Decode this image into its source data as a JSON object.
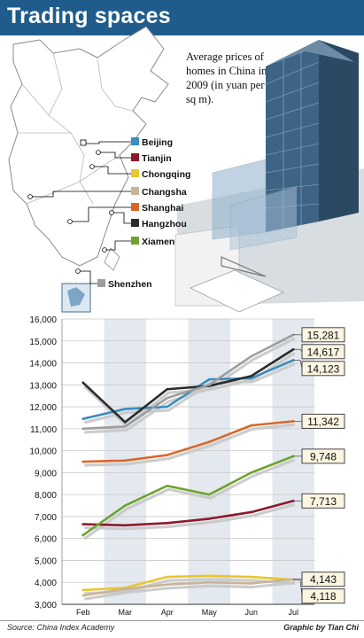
{
  "title": "Trading spaces",
  "subtitle": "Average prices of homes in China in 2009 (in yuan per sq m).",
  "source": "Source: China Index Academy",
  "credit": "Graphic by Tian Chi",
  "chart_data": {
    "type": "line",
    "categories": [
      "Feb",
      "Mar",
      "Apr",
      "May",
      "Jun",
      "Jul"
    ],
    "ylim": [
      3000,
      16000
    ],
    "y_ticks": [
      "3,000",
      "4,000",
      "5,000",
      "6,000",
      "7,000",
      "8,000",
      "9,000",
      "10,000",
      "11,000",
      "12,000",
      "13,000",
      "14,000",
      "15,000",
      "16,000"
    ],
    "grid": true,
    "series": [
      {
        "name": "Beijing",
        "color": "#3a8dc0",
        "values": [
          11450,
          11900,
          12000,
          13250,
          13300,
          14123
        ],
        "end_label": "14,123"
      },
      {
        "name": "Tianjin",
        "color": "#8b1a2b",
        "values": [
          6650,
          6600,
          6700,
          6900,
          7200,
          7713
        ],
        "end_label": "7,713"
      },
      {
        "name": "Chongqing",
        "color": "#e8c630",
        "values": [
          3650,
          3750,
          4250,
          4300,
          4250,
          4118
        ],
        "end_label": "4,118"
      },
      {
        "name": "Changsha",
        "color": "#c7b49a",
        "values": [
          3400,
          3700,
          3900,
          4000,
          3950,
          4143
        ],
        "end_label": "4,143"
      },
      {
        "name": "Shanghai",
        "color": "#d9672a",
        "values": [
          9500,
          9550,
          9800,
          10400,
          11150,
          11342
        ],
        "end_label": "11,342"
      },
      {
        "name": "Hangzhou",
        "color": "#2b2b2b",
        "values": [
          13100,
          11300,
          12800,
          12950,
          13400,
          14617
        ],
        "end_label": "14,617"
      },
      {
        "name": "Xiamen",
        "color": "#6fa32e",
        "values": [
          6150,
          7500,
          8400,
          8000,
          9000,
          9748
        ],
        "end_label": "9,748"
      },
      {
        "name": "Shenzhen",
        "color": "#9d9d9d",
        "values": [
          11000,
          11100,
          12400,
          13000,
          14300,
          15281
        ],
        "end_label": "15,281"
      }
    ]
  }
}
